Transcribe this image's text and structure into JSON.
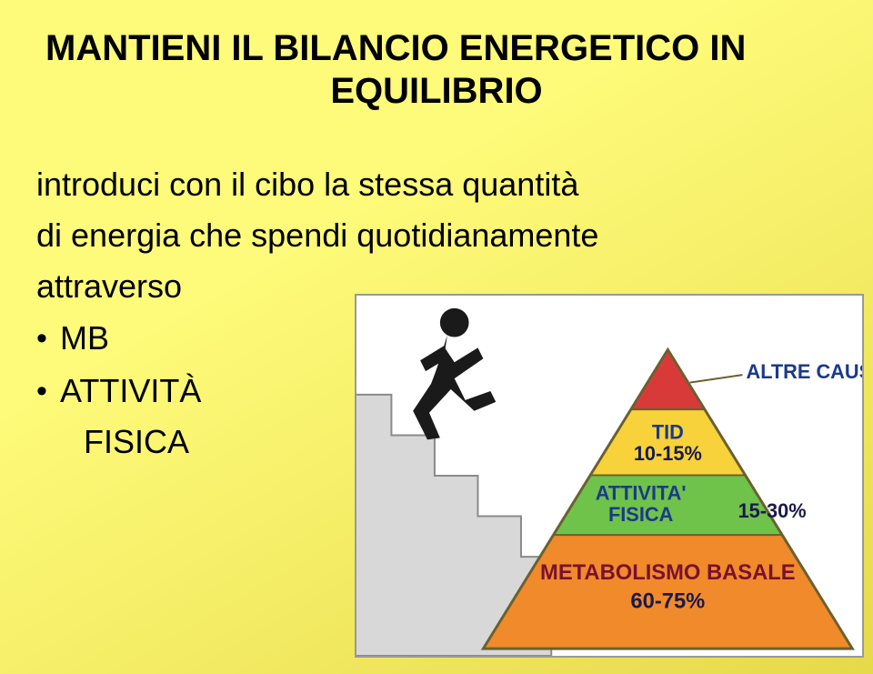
{
  "slide": {
    "background_gradient": {
      "from": "#fefb7a",
      "to": "#e6d94a",
      "angle_deg": 150
    },
    "title_line1": "MANTIENI IL BILANCIO ENERGETICO IN",
    "title_line2": "EQUILIBRIO",
    "body_line1": "introduci con il cibo la stessa quantità",
    "body_line2": "di energia che spendi quotidianamente",
    "body_line3": "attraverso",
    "bullets": [
      {
        "text": "MB"
      },
      {
        "text_line1": "ATTIVITÀ",
        "text_line2": "FISICA"
      }
    ]
  },
  "infographic": {
    "type": "infographic",
    "background_color": "#ffffff",
    "border_color": "#999999",
    "stairs": {
      "fill": "#d8d8d8",
      "stroke": "#8a8a8a",
      "step_count": 4
    },
    "figure": {
      "fill": "#1a1a1a"
    },
    "pyramid": {
      "outline_color": "#6a6030",
      "label_color": "#1a3a8a",
      "pct_color": "#1a1a4a",
      "layers": [
        {
          "label": "ALTRE CAUSE",
          "pct": "",
          "fill": "#d83a3a",
          "label_outside": true
        },
        {
          "label": "TID",
          "pct": "10-15%",
          "fill": "#f7d23a",
          "label_outside": false
        },
        {
          "label": "ATTIVITA' FISICA",
          "pct": "15-30%",
          "fill": "#6fc24a",
          "label_outside": false
        },
        {
          "label": "METABOLISMO BASALE",
          "pct": "60-75%",
          "fill": "#f08a2a",
          "label_outside": false
        }
      ],
      "label_fontsize": 22,
      "pct_fontsize": 22
    }
  }
}
